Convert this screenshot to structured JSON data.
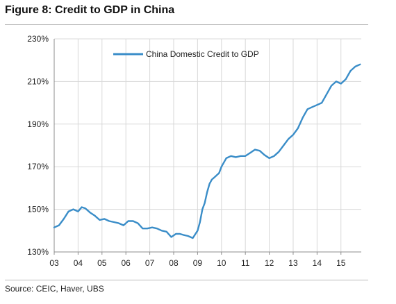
{
  "header": {
    "title": "Figure 8: Credit to GDP in China"
  },
  "footer": {
    "source": "Source:  CEIC, Haver, UBS"
  },
  "colors": {
    "line": "#3a8dc8",
    "grid": "#d8d8d8",
    "axis": "#8c8c8c"
  },
  "chart_data": {
    "type": "line",
    "title": "Figure 8: Credit to GDP in China",
    "xlabel": "",
    "ylabel": "",
    "x_tick_labels": [
      "03",
      "04",
      "05",
      "06",
      "07",
      "08",
      "09",
      "10",
      "11",
      "12",
      "13",
      "14",
      "15"
    ],
    "y_tick_labels": [
      "130%",
      "150%",
      "170%",
      "190%",
      "210%",
      "230%"
    ],
    "xlim": [
      2003,
      2015.85
    ],
    "ylim": [
      130,
      230
    ],
    "grid": true,
    "legend": "top-center",
    "series": [
      {
        "name": "China Domestic Credit to GDP",
        "x": [
          2003.0,
          2003.2,
          2003.4,
          2003.6,
          2003.8,
          2004.0,
          2004.15,
          2004.3,
          2004.5,
          2004.7,
          2004.9,
          2005.1,
          2005.3,
          2005.5,
          2005.7,
          2005.9,
          2006.1,
          2006.3,
          2006.5,
          2006.7,
          2006.9,
          2007.1,
          2007.3,
          2007.5,
          2007.7,
          2007.9,
          2008.1,
          2008.25,
          2008.4,
          2008.6,
          2008.8,
          2009.0,
          2009.1,
          2009.2,
          2009.3,
          2009.4,
          2009.5,
          2009.6,
          2009.7,
          2009.8,
          2009.9,
          2010.0,
          2010.2,
          2010.4,
          2010.6,
          2010.8,
          2011.0,
          2011.2,
          2011.4,
          2011.6,
          2011.8,
          2012.0,
          2012.2,
          2012.4,
          2012.6,
          2012.8,
          2013.0,
          2013.2,
          2013.4,
          2013.6,
          2013.8,
          2014.0,
          2014.2,
          2014.4,
          2014.6,
          2014.8,
          2015.0,
          2015.2,
          2015.4,
          2015.6,
          2015.8
        ],
        "values": [
          141.5,
          142.5,
          145.5,
          149.0,
          150.0,
          149.0,
          151.0,
          150.5,
          148.5,
          147.0,
          145.0,
          145.5,
          144.5,
          144.0,
          143.5,
          142.5,
          144.5,
          144.5,
          143.5,
          141.0,
          141.0,
          141.5,
          141.0,
          140.0,
          139.5,
          137.0,
          138.5,
          138.5,
          138.0,
          137.5,
          136.5,
          140.0,
          144.0,
          150.0,
          153.0,
          158.0,
          162.0,
          164.0,
          165.0,
          166.0,
          167.0,
          170.0,
          174.0,
          175.0,
          174.5,
          175.0,
          175.0,
          176.5,
          178.0,
          177.5,
          175.5,
          174.0,
          175.0,
          177.0,
          180.0,
          183.0,
          185.0,
          188.0,
          193.0,
          197.0,
          198.0,
          199.0,
          200.0,
          204.0,
          208.0,
          210.0,
          209.0,
          211.0,
          215.0,
          217.0,
          218.0
        ]
      }
    ]
  }
}
